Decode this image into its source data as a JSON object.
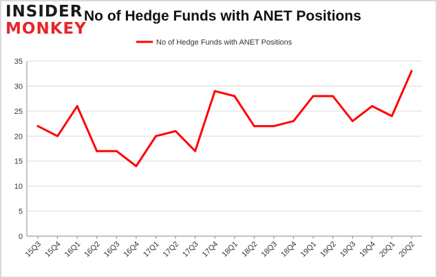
{
  "logo": {
    "line1": "INSIDER",
    "line2": "MONKEY"
  },
  "colors": {
    "series": "#ff0000",
    "grid": "#d9d9d9",
    "axis": "#888888"
  },
  "chart_data": {
    "type": "line",
    "title": "No of Hedge Funds with ANET Positions",
    "xlabel": "",
    "ylabel": "",
    "categories": [
      "15Q3",
      "15Q4",
      "16Q1",
      "16Q2",
      "16Q3",
      "16Q4",
      "17Q1",
      "17Q2",
      "17Q3",
      "17Q4",
      "18Q1",
      "18Q2",
      "18Q3",
      "18Q4",
      "19Q1",
      "19Q2",
      "19Q3",
      "19Q4",
      "20Q1",
      "20Q2"
    ],
    "series": [
      {
        "name": "No of Hedge Funds with ANET Positions",
        "values": [
          22,
          20,
          26,
          17,
          17,
          14,
          20,
          21,
          17,
          29,
          28,
          22,
          22,
          23,
          28,
          28,
          23,
          26,
          24,
          33
        ]
      }
    ],
    "ylim": [
      0,
      35
    ],
    "yticks": [
      0,
      5,
      10,
      15,
      20,
      25,
      30,
      35
    ],
    "grid": true,
    "legend": "top-center"
  }
}
